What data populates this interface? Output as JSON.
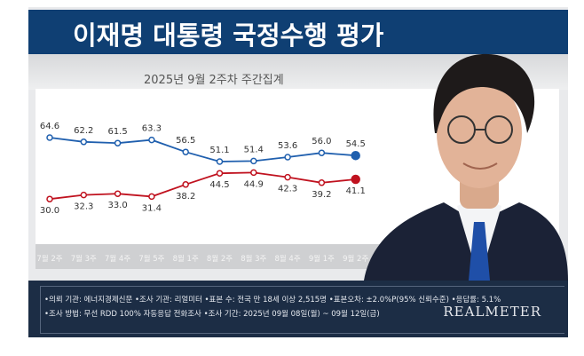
{
  "header": {
    "title": "이재명 대통령 국정수행 평가",
    "subtitle": "2025년 9월 2주차 주간집계"
  },
  "chart_data": {
    "type": "line",
    "categories": [
      "7월 2주",
      "7월 3주",
      "7월 4주",
      "7월 5주",
      "8월 1주",
      "8월 2주",
      "8월 3주",
      "8월 4주",
      "9월 1주",
      "9월 2주"
    ],
    "series": [
      {
        "values": [
          64.6,
          62.2,
          61.5,
          63.3,
          56.5,
          51.1,
          51.4,
          53.6,
          56.0,
          54.5
        ],
        "color": "#1f5fae"
      },
      {
        "values": [
          30.0,
          32.3,
          33.0,
          31.4,
          38.2,
          44.5,
          44.9,
          42.3,
          39.2,
          41.1
        ],
        "color": "#c0121f"
      }
    ],
    "grid": false
  },
  "footer": {
    "line1": "•의뢰 기관: 에너지경제신문 •조사 기관: 리얼미터 •표본 수: 전국 만 18세 이상 2,515명 •표본오차: ±2.0%P(95% 신뢰수준) •응답률: 5.1%",
    "line2": "•조사 방법: 무선 RDD 100% 자동응답 전화조사 •조사 기간: 2025년 09월 08일(월) ~ 09월 12일(금)",
    "logo": "REALMETER"
  },
  "colors": {
    "title_band": "#0f3f73",
    "footer": "#1c2d45"
  }
}
